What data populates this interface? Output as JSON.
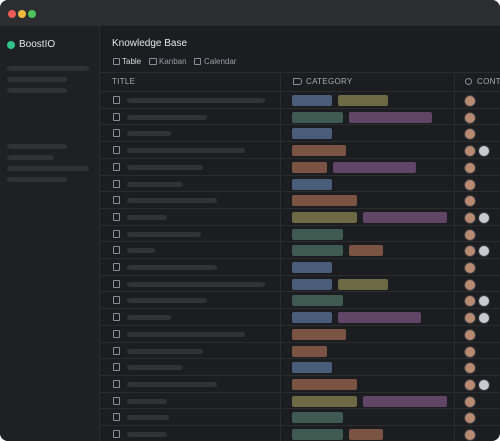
{
  "sidebar": {
    "app_name": "BoostIO"
  },
  "header": {
    "title": "Knowledge Base",
    "tabs": [
      "Table",
      "Kanban",
      "Calendar"
    ]
  },
  "table": {
    "columns": [
      "TITLE",
      "CATEGORY",
      "CONTA"
    ]
  }
}
